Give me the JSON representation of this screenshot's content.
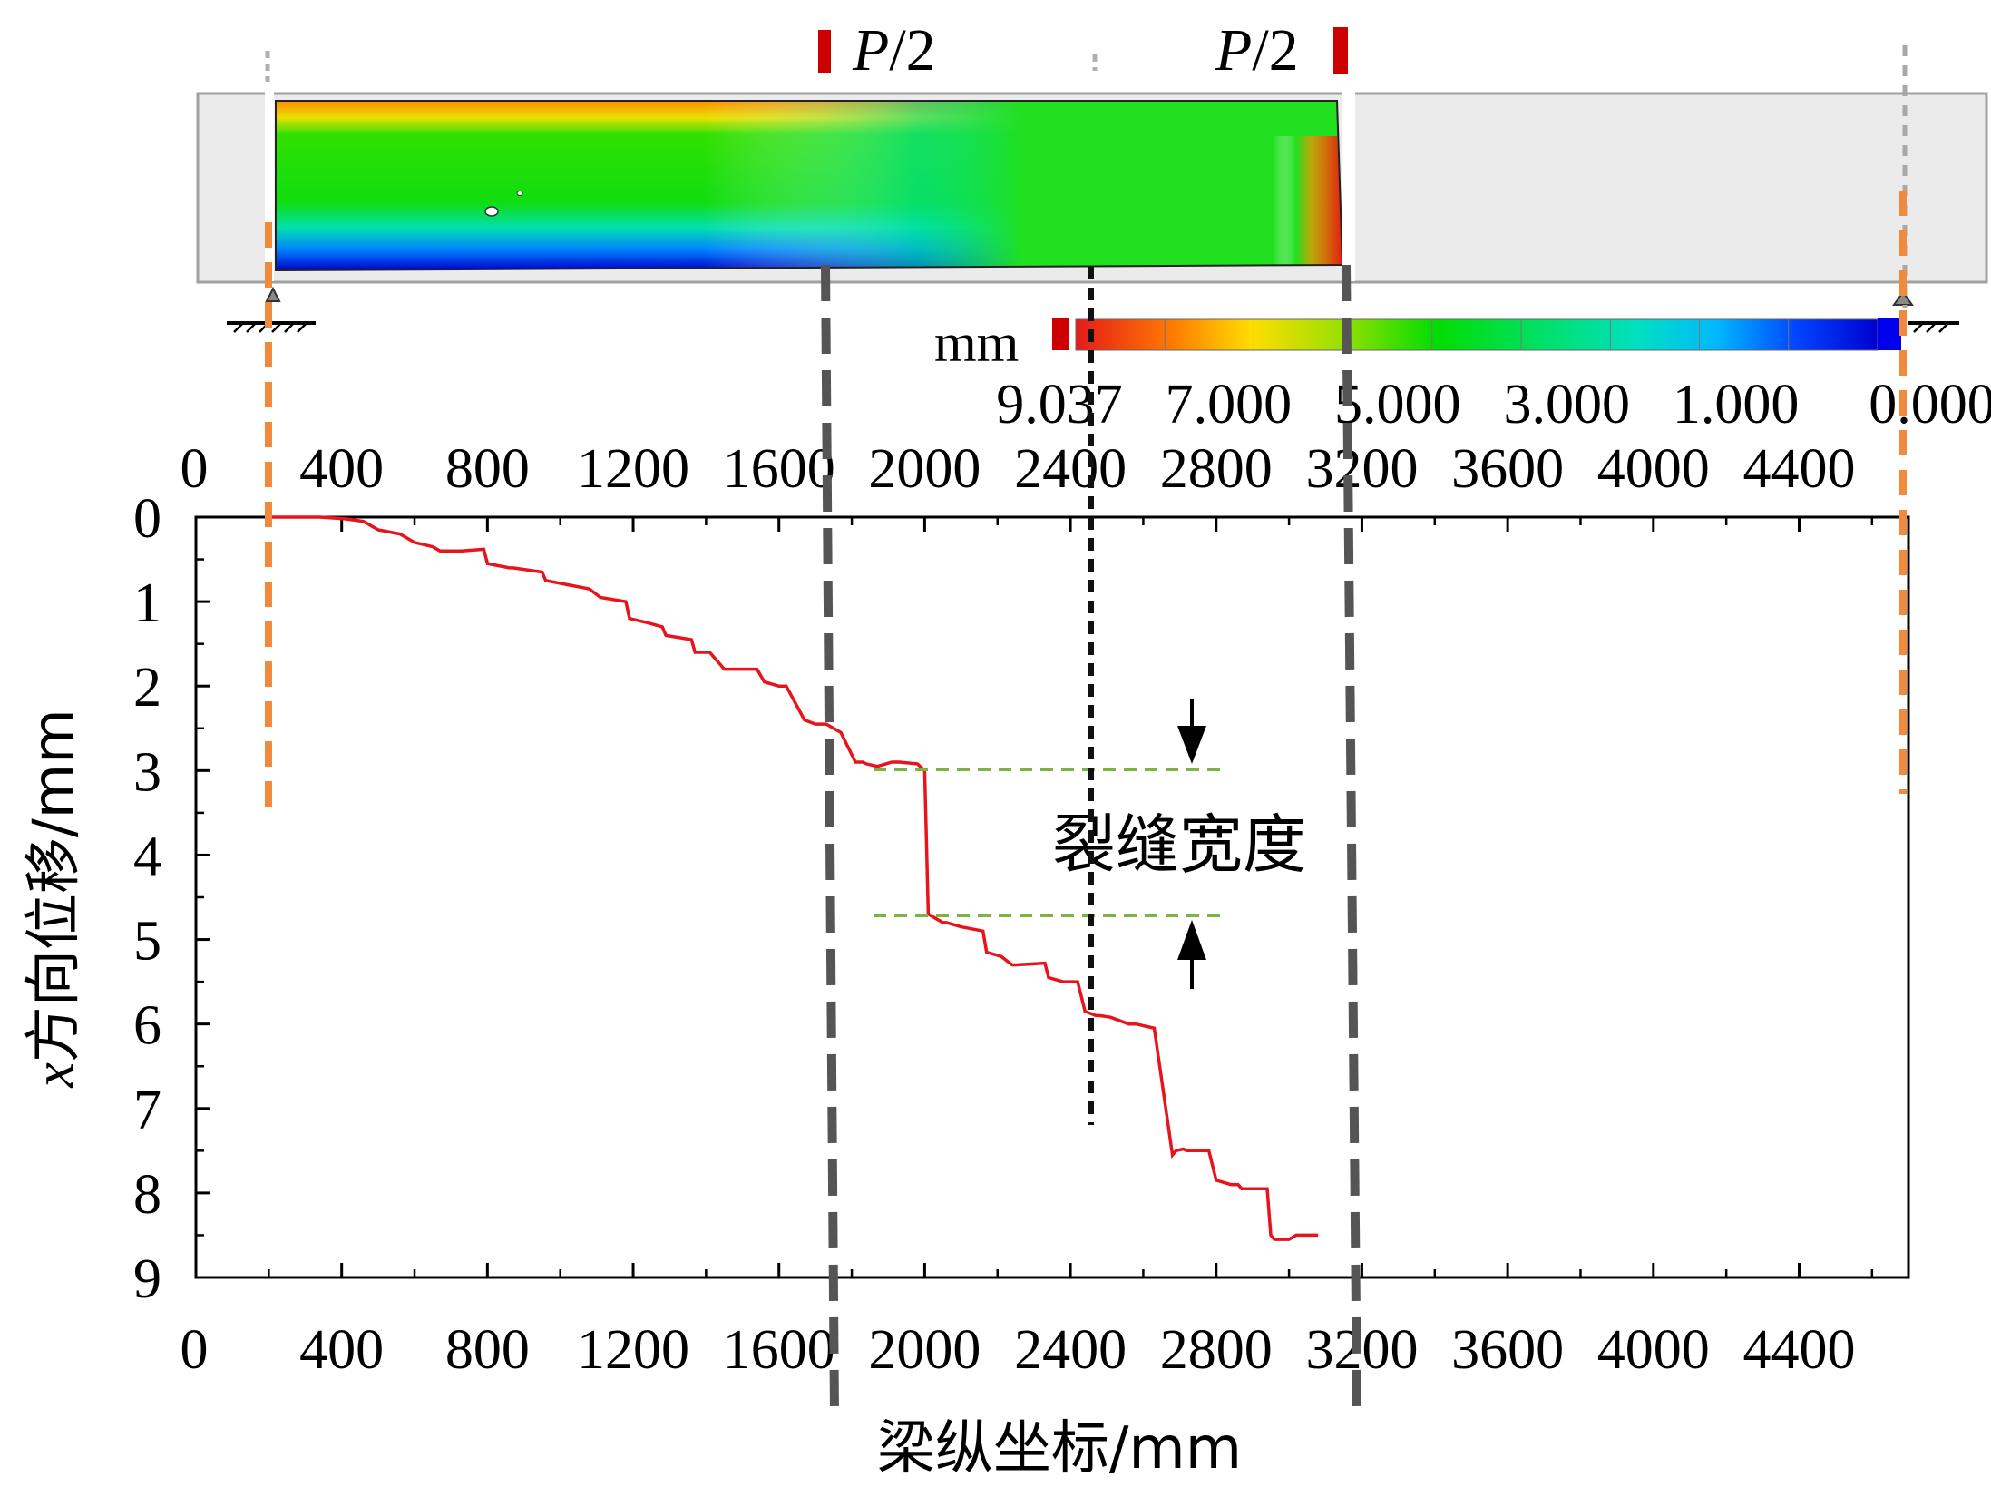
{
  "chart_data": {
    "type": "line",
    "xlabel": "梁纵坐标/mm",
    "ylabel_italic": "x",
    "ylabel_rest": "方向位移/mm",
    "xlim": [
      0,
      4700
    ],
    "ylim": [
      0,
      9
    ],
    "y_inverted": true,
    "x_ticks": [
      "0",
      "400",
      "800",
      "1200",
      "1600",
      "2000",
      "2400",
      "2800",
      "3200",
      "3600",
      "4000",
      "4400"
    ],
    "y_ticks": [
      "0",
      "1",
      "2",
      "3",
      "4",
      "5",
      "6",
      "7",
      "8",
      "9"
    ],
    "x_tick_values": [
      0,
      400,
      800,
      1200,
      1600,
      2000,
      2400,
      2800,
      3200,
      3600,
      4000,
      4400
    ],
    "y_tick_values": [
      0,
      1,
      2,
      3,
      4,
      5,
      6,
      7,
      8,
      9
    ],
    "series": [
      {
        "color": "#e8141b",
        "x": [
          200,
          270,
          340,
          410,
          460,
          500,
          560,
          600,
          650,
          670,
          730,
          790,
          800,
          860,
          870,
          950,
          960,
          1020,
          1080,
          1110,
          1180,
          1190,
          1240,
          1280,
          1290,
          1360,
          1370,
          1410,
          1440,
          1450,
          1540,
          1560,
          1600,
          1620,
          1670,
          1700,
          1730,
          1770,
          1810,
          1830,
          1840,
          1870,
          1910,
          1930,
          1980,
          2000,
          2010,
          2030,
          2050,
          2060,
          2100,
          2160,
          2170,
          2210,
          2240,
          2250,
          2330,
          2340,
          2380,
          2420,
          2440,
          2470,
          2480,
          2510,
          2560,
          2580,
          2630,
          2680,
          2690,
          2710,
          2720,
          2780,
          2800,
          2840,
          2860,
          2870,
          2940,
          2950,
          2960,
          3000,
          3020,
          3080
        ],
        "y": [
          0.0,
          0.0,
          0.0,
          0.02,
          0.05,
          0.15,
          0.2,
          0.3,
          0.35,
          0.4,
          0.4,
          0.38,
          0.55,
          0.6,
          0.6,
          0.65,
          0.75,
          0.8,
          0.85,
          0.95,
          1.0,
          1.2,
          1.25,
          1.3,
          1.4,
          1.45,
          1.6,
          1.6,
          1.75,
          1.8,
          1.8,
          1.95,
          2.0,
          2.0,
          2.4,
          2.45,
          2.45,
          2.55,
          2.9,
          2.9,
          2.92,
          2.95,
          2.9,
          2.9,
          2.92,
          3.0,
          4.7,
          4.75,
          4.8,
          4.8,
          4.85,
          4.9,
          5.15,
          5.2,
          5.3,
          5.3,
          5.28,
          5.45,
          5.5,
          5.5,
          5.85,
          5.9,
          5.9,
          5.92,
          6.0,
          6.0,
          6.05,
          7.55,
          7.5,
          7.48,
          7.5,
          7.5,
          7.85,
          7.9,
          7.9,
          7.95,
          7.95,
          8.5,
          8.55,
          8.55,
          8.5,
          8.5
        ]
      }
    ],
    "annotation": "裂缝宽度",
    "load_labels": [
      "P/2",
      "P/2"
    ],
    "colorbar": {
      "unit": "mm",
      "labels": [
        "9.037",
        "7.000",
        "5.000",
        "3.000",
        "1.000",
        "0.000"
      ],
      "colors": [
        "#e51b1b",
        "#ff7a00",
        "#ffdd00",
        "#9ae000",
        "#00dd00",
        "#00e066",
        "#00e0c0",
        "#00b8ff",
        "#0044ff",
        "#0000d0"
      ]
    }
  }
}
